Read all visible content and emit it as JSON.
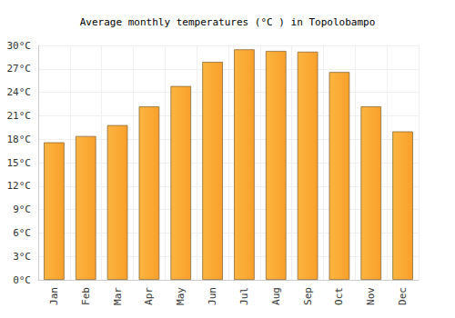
{
  "chart_data": {
    "type": "bar",
    "title": "Average monthly temperatures (°C ) in Topolobampo",
    "categories": [
      "Jan",
      "Feb",
      "Mar",
      "Apr",
      "May",
      "Jun",
      "Jul",
      "Aug",
      "Sep",
      "Oct",
      "Nov",
      "Dec"
    ],
    "values": [
      17.6,
      18.4,
      19.8,
      22.2,
      24.8,
      27.9,
      29.5,
      29.3,
      29.2,
      26.6,
      22.2,
      19.0
    ],
    "color": "#f9a02b",
    "ylim": [
      0,
      30
    ],
    "yticks": [
      {
        "value": 0,
        "label": "0°C"
      },
      {
        "value": 3,
        "label": "3°C"
      },
      {
        "value": 6,
        "label": "6°C"
      },
      {
        "value": 9,
        "label": "9°C"
      },
      {
        "value": 12,
        "label": "12°C"
      },
      {
        "value": 15,
        "label": "15°C"
      },
      {
        "value": 18,
        "label": "18°C"
      },
      {
        "value": 21,
        "label": "21°C"
      },
      {
        "value": 24,
        "label": "24°C"
      },
      {
        "value": 27,
        "label": "27°C"
      },
      {
        "value": 30,
        "label": "30°C"
      }
    ],
    "grid": true
  }
}
